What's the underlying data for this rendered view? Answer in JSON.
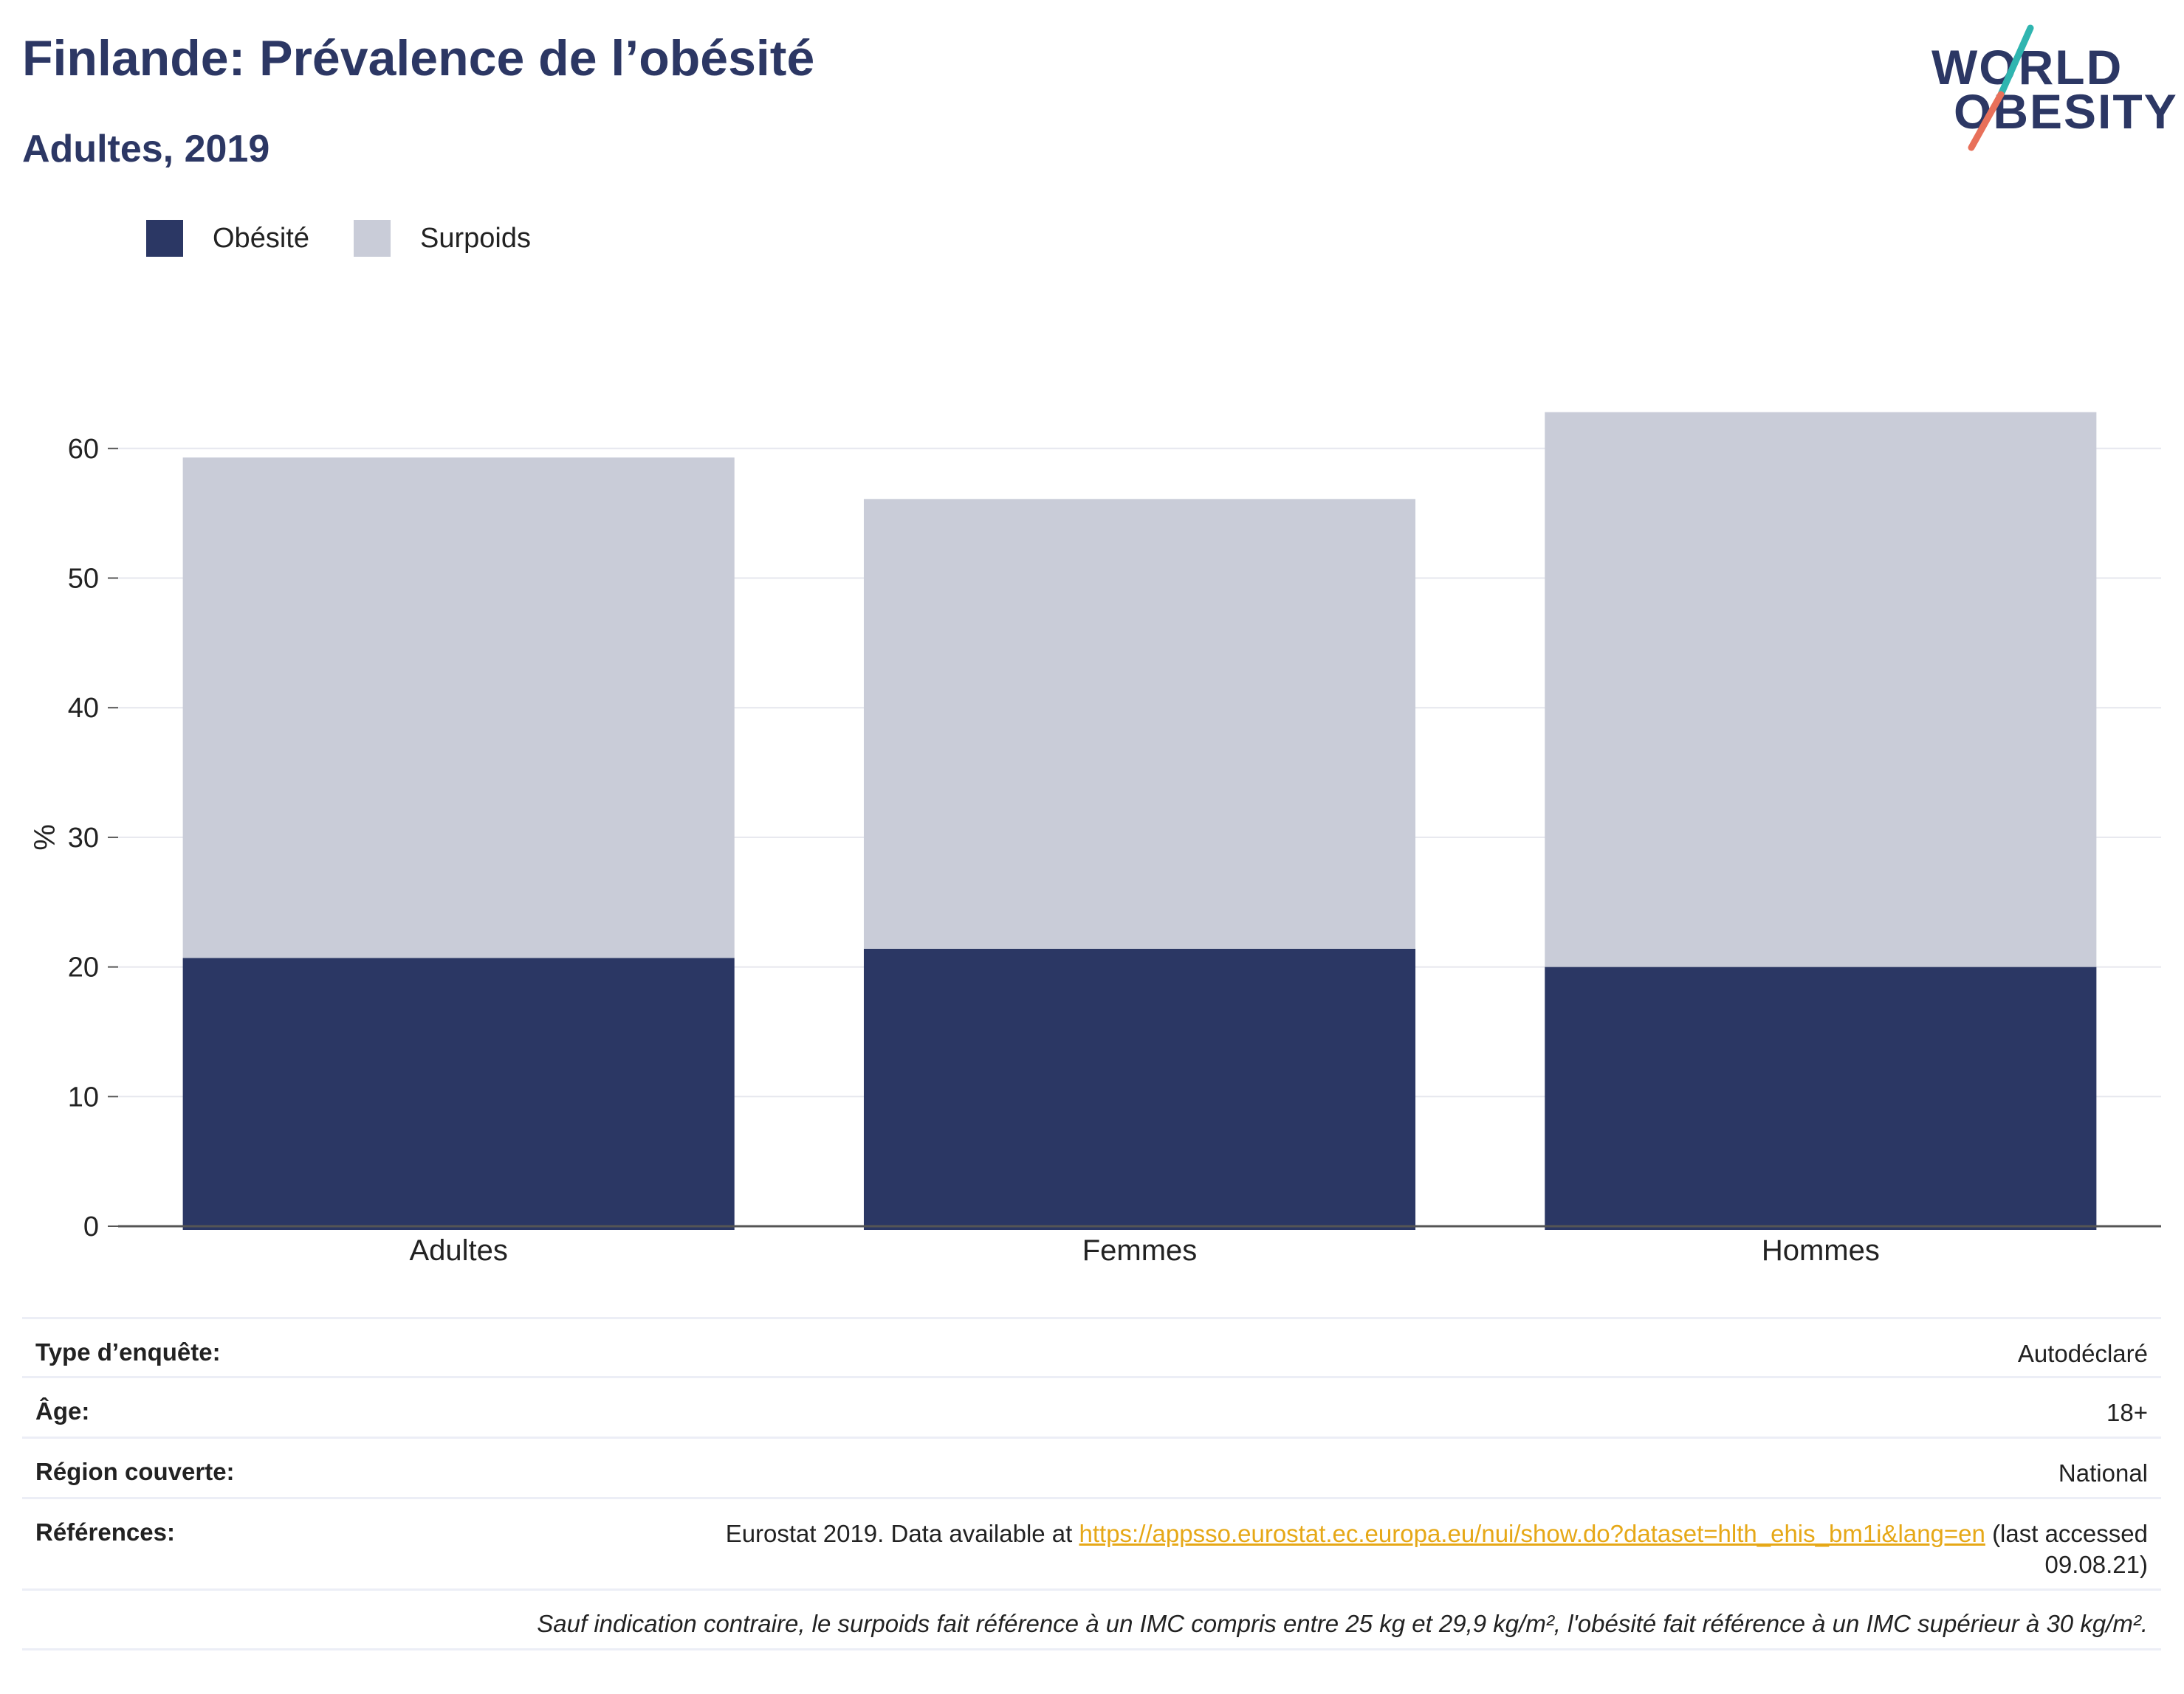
{
  "header": {
    "title": "Finlande: Prévalence de l’obésité",
    "subtitle": "Adultes, 2019"
  },
  "logo": {
    "line1": "WORLD",
    "line2": "OBESITY",
    "colors": {
      "text": "#2c3764",
      "slash_top": "#2fb5b0",
      "slash_bottom": "#e8705a"
    }
  },
  "colors": {
    "obesity": "#2b3764",
    "overweight": "#c9ccd8",
    "grid": "#e6e7ee",
    "axis": "#555555"
  },
  "chart_data": {
    "type": "bar",
    "stacked": true,
    "categories": [
      "Adultes",
      "Femmes",
      "Hommes"
    ],
    "series": [
      {
        "name": "Obésité",
        "values": [
          20.7,
          21.4,
          20.0
        ]
      },
      {
        "name": "Surpoids",
        "values": [
          38.6,
          34.7,
          42.8
        ]
      }
    ],
    "title": "Finlande: Prévalence de l’obésité",
    "subtitle": "Adultes, 2019",
    "xlabel": "",
    "ylabel": "%",
    "ylim": [
      0,
      63
    ],
    "yticks": [
      0,
      10,
      20,
      30,
      40,
      50,
      60
    ],
    "grid": true,
    "legend": "top-left"
  },
  "info": {
    "survey_type_label": "Type d’enquête:",
    "survey_type_value": "Autodéclaré",
    "age_label": "Âge:",
    "age_value": "18+",
    "region_label": "Région couverte:",
    "region_value": "National",
    "references_label": "Références:",
    "references_prefix": "Eurostat 2019. Data available at",
    "references_link": "https://appsso.eurostat.ec.europa.eu/nui/show.do?dataset=hlth_ehis_bm1i&lang=en",
    "references_suffix": "(last accessed",
    "references_date": "09.08.21)",
    "note": "Sauf indication contraire, le surpoids fait référence à un IMC compris entre 25 kg et 29,9 kg/m², l'obésité fait référence à un IMC supérieur à 30 kg/m²."
  }
}
